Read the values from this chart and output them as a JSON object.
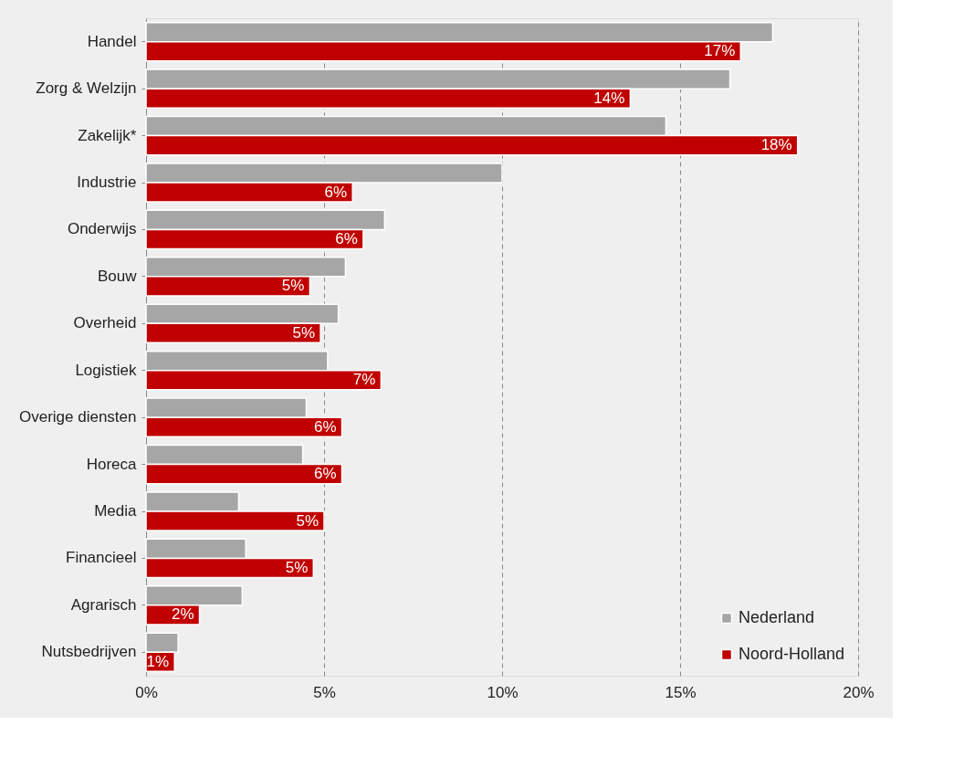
{
  "chart_data": {
    "type": "bar",
    "orientation": "horizontal",
    "categories": [
      "Handel",
      "Zorg & Welzijn",
      "Zakelijk*",
      "Industrie",
      "Onderwijs",
      "Bouw",
      "Overheid",
      "Logistiek",
      "Overige diensten",
      "Horeca",
      "Media",
      "Financieel",
      "Agrarisch",
      "Nutsbedrijven"
    ],
    "series": [
      {
        "name": "Nederland",
        "color": "#a6a6a6",
        "values": [
          17.6,
          16.4,
          14.6,
          10.0,
          6.7,
          5.6,
          5.4,
          5.1,
          4.5,
          4.4,
          2.6,
          2.8,
          2.7,
          0.9
        ]
      },
      {
        "name": "Noord-Holland",
        "color": "#c00000",
        "values": [
          16.7,
          13.6,
          18.3,
          5.8,
          6.1,
          4.6,
          4.9,
          6.6,
          5.5,
          5.5,
          5.0,
          4.7,
          1.5,
          0.8
        ],
        "value_labels": [
          "17%",
          "14%",
          "18%",
          "6%",
          "6%",
          "5%",
          "5%",
          "7%",
          "6%",
          "6%",
          "5%",
          "5%",
          "2%",
          "1%"
        ]
      }
    ],
    "xlim": [
      0,
      20
    ],
    "xticks": [
      {
        "value": 0,
        "label": "0%"
      },
      {
        "value": 5,
        "label": "5%"
      },
      {
        "value": 10,
        "label": "10%"
      },
      {
        "value": 15,
        "label": "15%"
      },
      {
        "value": 20,
        "label": "20%"
      }
    ],
    "grid": "x",
    "legend": "bottom right"
  }
}
